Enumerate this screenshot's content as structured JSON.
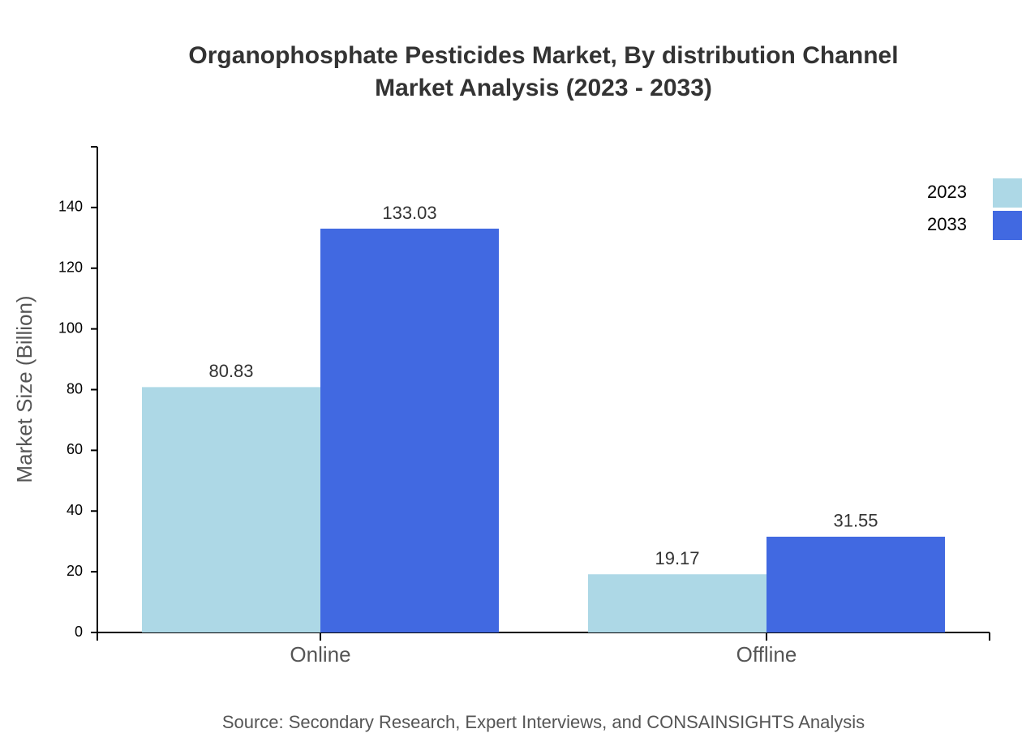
{
  "chart_data": {
    "type": "bar",
    "title": [
      "Organophosphate Pesticides Market, By distribution Channel",
      "Market Analysis (2023 - 2033)"
    ],
    "y_label": "Market Size (Billion)",
    "source": "Source: Secondary Research, Expert Interviews, and CONSAINSIGHTS Analysis",
    "categories": [
      "Online",
      "Offline"
    ],
    "series": [
      {
        "name": "2023",
        "color": "#add8e6",
        "values": [
          80.83,
          19.17
        ]
      },
      {
        "name": "2033",
        "color": "#4169e1",
        "values": [
          133.03,
          31.55
        ]
      }
    ],
    "ylim": [
      0,
      160
    ],
    "yticks": [
      0,
      20,
      40,
      60,
      80,
      100,
      120,
      140
    ],
    "legend": "top-right"
  }
}
